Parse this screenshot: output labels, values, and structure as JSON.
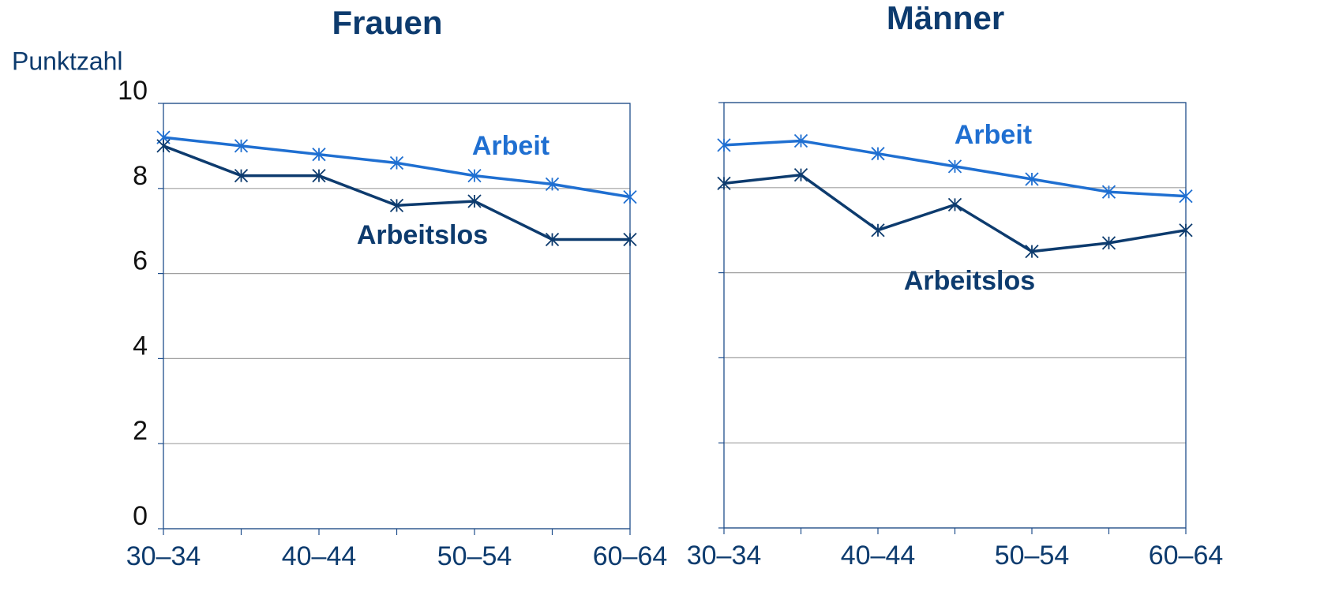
{
  "chart_data": [
    {
      "type": "line",
      "title": "Frauen",
      "y_label": "Punktzahl",
      "categories": [
        "30–34",
        null,
        "40–44",
        null,
        "50–54",
        null,
        "60–64"
      ],
      "series": [
        {
          "name": "Arbeit",
          "color": "#1f6fd1",
          "values": [
            9.2,
            9.0,
            8.8,
            8.6,
            8.3,
            8.1,
            7.8
          ]
        },
        {
          "name": "Arbeitslos",
          "color": "#0d3b6e",
          "values": [
            9.0,
            8.3,
            8.3,
            7.6,
            7.7,
            6.8,
            6.8
          ]
        }
      ],
      "ylim": [
        0,
        10
      ],
      "yticks": [
        0,
        2,
        4,
        6,
        8,
        10
      ],
      "ytick_labels": true,
      "grid": true
    },
    {
      "type": "line",
      "title": "Männer",
      "categories": [
        "30–34",
        null,
        "40–44",
        null,
        "50–54",
        null,
        "60–64"
      ],
      "series": [
        {
          "name": "Arbeit",
          "color": "#1f6fd1",
          "values": [
            9.0,
            9.1,
            8.8,
            8.5,
            8.2,
            7.9,
            7.8
          ]
        },
        {
          "name": "Arbeitslos",
          "color": "#0d3b6e",
          "values": [
            8.1,
            8.3,
            7.0,
            7.6,
            6.5,
            6.7,
            7.0
          ]
        }
      ],
      "ylim": [
        0,
        10
      ],
      "yticks": [
        0,
        2,
        4,
        6,
        8,
        10
      ],
      "ytick_labels": false,
      "grid": true
    }
  ]
}
